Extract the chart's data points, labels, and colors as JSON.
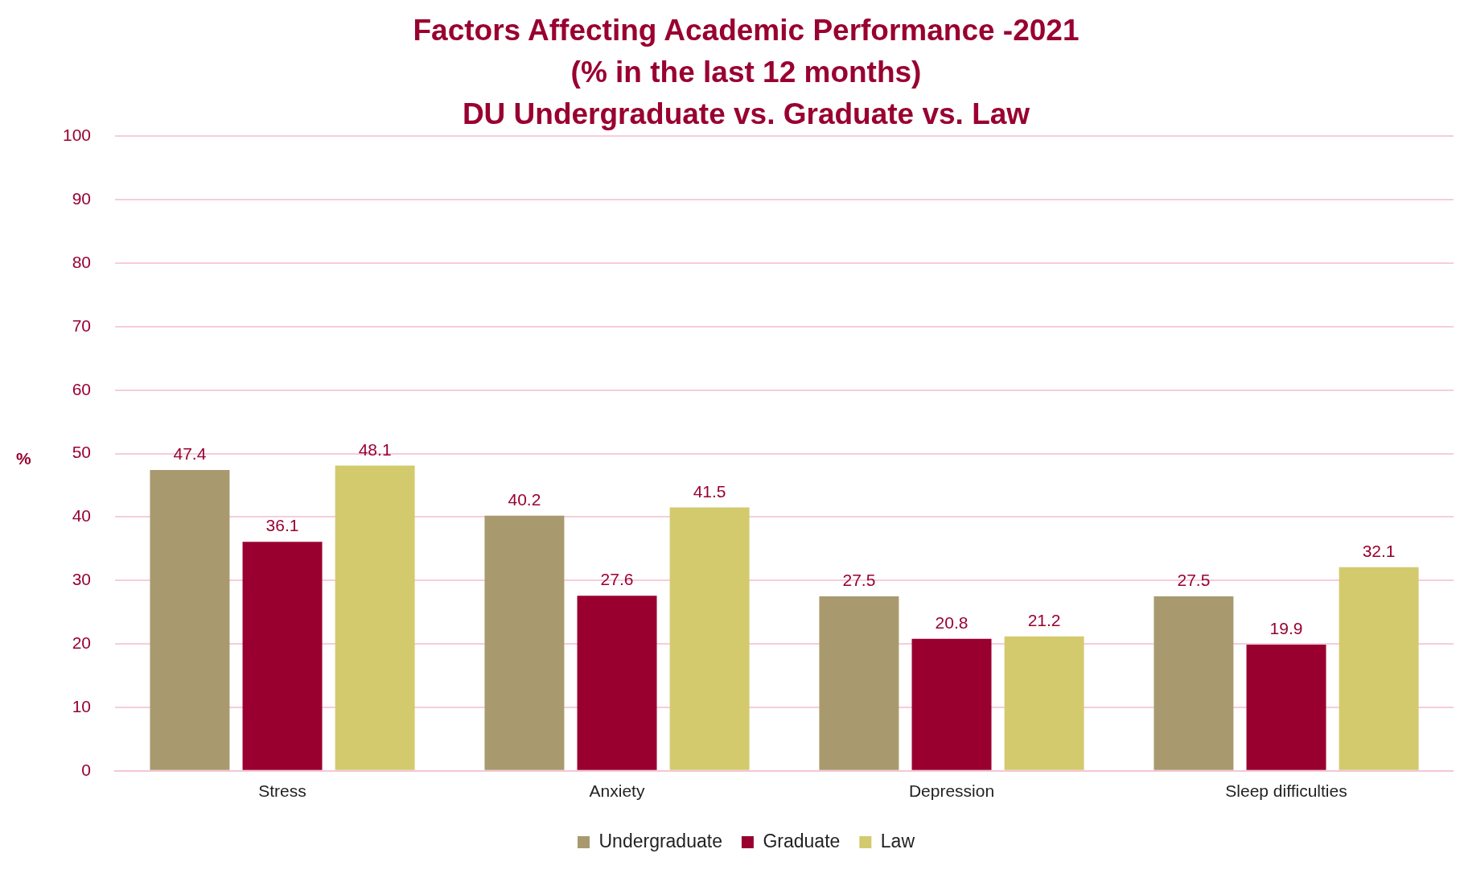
{
  "chart_data": {
    "type": "bar",
    "title": "Factors Affecting Academic Performance -2021\n(% in the last 12 months)\nDU Undergraduate vs. Graduate vs. Law",
    "ylabel": "%",
    "categories": [
      "Stress",
      "Anxiety",
      "Depression",
      "Sleep difficulties"
    ],
    "series": [
      {
        "name": "Undergraduate",
        "color": "#a89a6e",
        "values": [
          47.4,
          40.2,
          27.5,
          27.5
        ]
      },
      {
        "name": "Graduate",
        "color": "#990030",
        "values": [
          36.1,
          27.6,
          20.8,
          19.9
        ]
      },
      {
        "name": "Law",
        "color": "#d3ca6e",
        "values": [
          48.1,
          41.5,
          21.2,
          32.1
        ]
      }
    ],
    "ylim": [
      0,
      100
    ],
    "yticks": [
      0,
      10,
      20,
      30,
      40,
      50,
      60,
      70,
      80,
      90,
      100
    ],
    "grid": "y",
    "legend": "bottom",
    "data_labels": true
  }
}
